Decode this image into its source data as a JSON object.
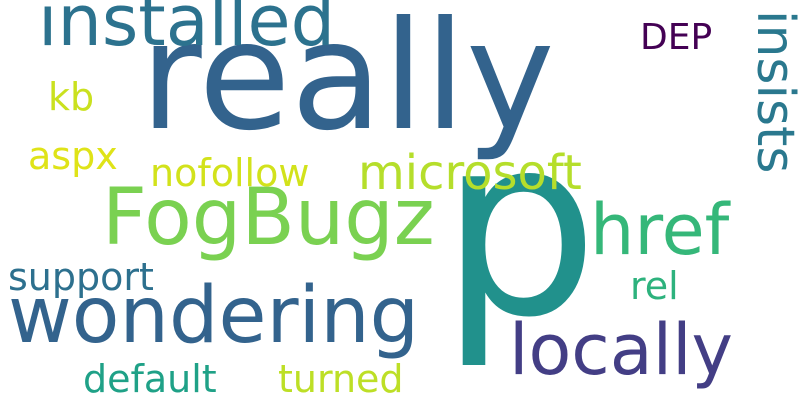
{
  "words": {
    "really": "really",
    "p": "p",
    "installed": "installed",
    "insists": "insists",
    "dep": "DEP",
    "fogbugz": "FogBugz",
    "wondering": "wondering",
    "href": "href",
    "locally": "locally",
    "microsoft": "microsoft",
    "nofollow": "nofollow",
    "aspx": "aspx",
    "kb": "kb",
    "support": "support",
    "rel": "rel",
    "default": "default",
    "turned": "turned"
  },
  "colors": {
    "really": "#33638d",
    "p": "#21918c",
    "installed": "#2c728e",
    "insists": "#2a788e",
    "dep": "#440154",
    "fogbugz": "#7ad151",
    "wondering": "#33638d",
    "href": "#35b779",
    "locally": "#433e85",
    "microsoft": "#b5de2b",
    "nofollow": "#d2e21b",
    "aspx": "#dfe318",
    "kb": "#cae11f",
    "support": "#2d708e",
    "rel": "#2db27d",
    "default": "#1fa187",
    "turned": "#bddf26"
  }
}
